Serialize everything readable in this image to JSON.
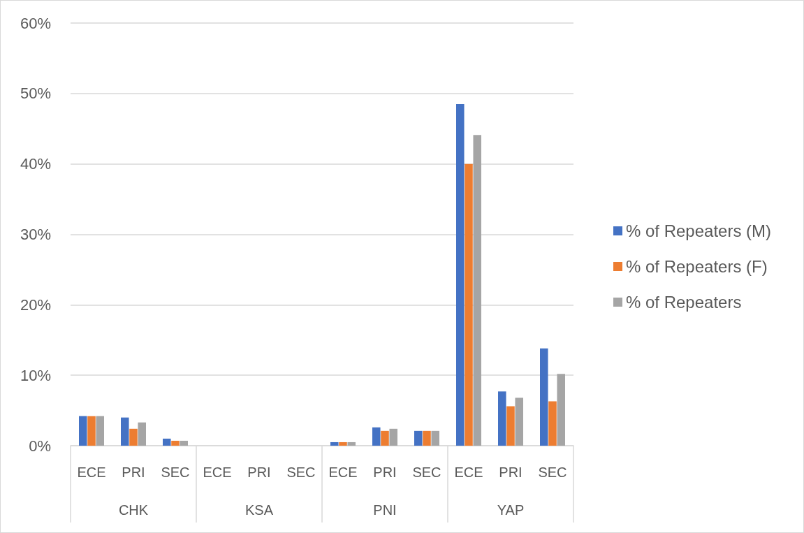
{
  "chart_data": {
    "type": "bar",
    "categories": [
      "ECE",
      "PRI",
      "SEC",
      "ECE",
      "PRI",
      "SEC",
      "ECE",
      "PRI",
      "SEC",
      "ECE",
      "PRI",
      "SEC"
    ],
    "annotations": [
      "CHK",
      "KSA",
      "PNI",
      "YAP"
    ],
    "series": [
      {
        "name": "% of Repeaters (M)",
        "color": "#4472c4",
        "values": [
          4.2,
          4.0,
          1.0,
          null,
          null,
          null,
          0.5,
          2.6,
          2.1,
          48.5,
          7.7,
          13.8
        ]
      },
      {
        "name": "% of Repeaters (F)",
        "color": "#ed7d31",
        "values": [
          4.2,
          2.4,
          0.7,
          null,
          null,
          null,
          0.5,
          2.1,
          2.1,
          40,
          5.6,
          6.3
        ]
      },
      {
        "name": "% of Repeaters",
        "color": "#a5a5a5",
        "values": [
          4.2,
          3.3,
          0.7,
          null,
          null,
          null,
          0.5,
          2.4,
          2.1,
          44.1,
          6.8,
          10.2
        ]
      }
    ],
    "ylim": [
      0,
      60
    ],
    "yticks": [
      {
        "value": 0,
        "label": "0%"
      },
      {
        "value": 10,
        "label": "10%"
      },
      {
        "value": 20,
        "label": "20%"
      },
      {
        "value": 30,
        "label": "30%"
      },
      {
        "value": 40,
        "label": "40%"
      },
      {
        "value": 50,
        "label": "50%"
      },
      {
        "value": 60,
        "label": "60%"
      }
    ],
    "grid": "y",
    "legend": "right"
  }
}
